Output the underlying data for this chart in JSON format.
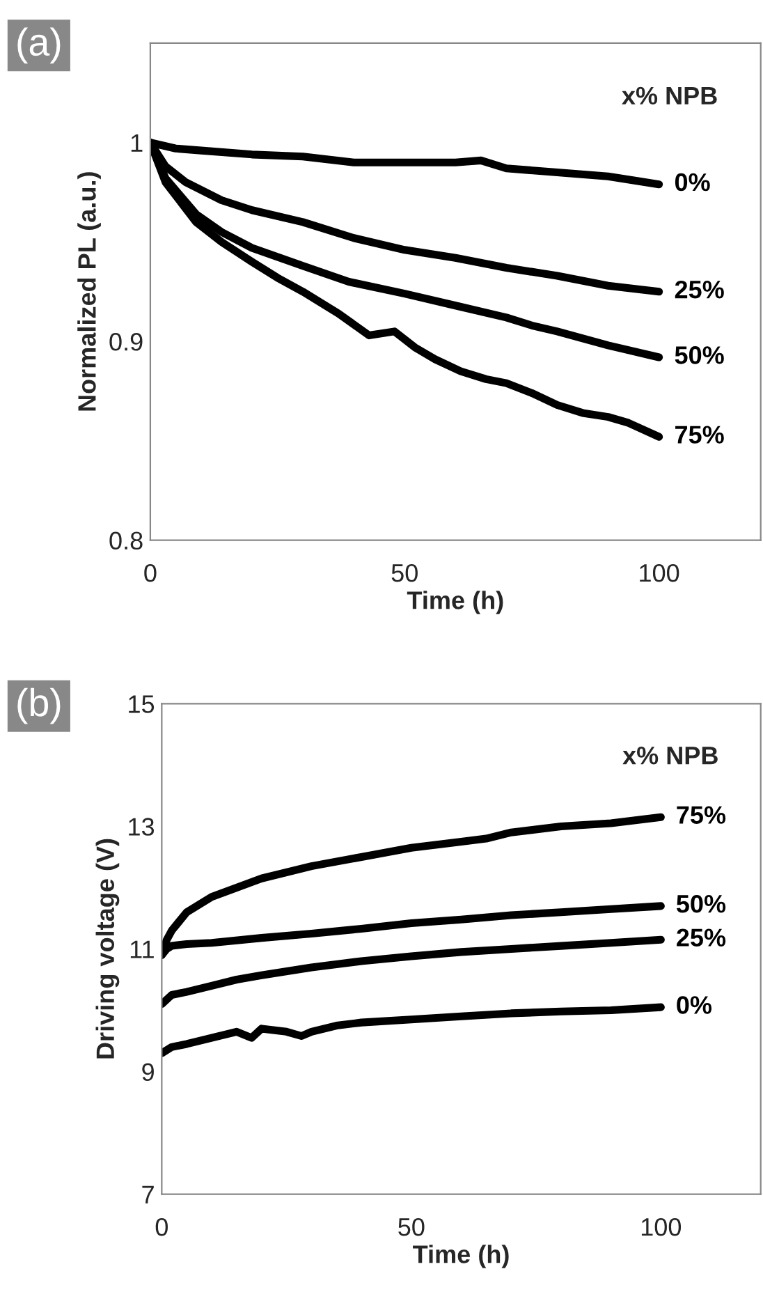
{
  "chart_data": [
    {
      "type": "line",
      "title": "(a)",
      "xlabel": "Time (h)",
      "ylabel": "Normalized PL (a.u.)",
      "legend_title": "x% NPB",
      "xlim": [
        0,
        120
      ],
      "xticks": [
        0,
        50,
        100
      ],
      "ylim": [
        0.8,
        1.05
      ],
      "yticks": [
        0.8,
        0.9,
        1
      ],
      "grid": false,
      "legend": false,
      "marker": "none",
      "line_style": "solid",
      "series": [
        {
          "name": "0%",
          "color": "#000000",
          "x": [
            0,
            5,
            10,
            20,
            30,
            40,
            50,
            60,
            65,
            70,
            80,
            90,
            100
          ],
          "values": [
            1.0,
            0.997,
            0.996,
            0.994,
            0.993,
            0.99,
            0.99,
            0.99,
            0.991,
            0.987,
            0.985,
            0.983,
            0.979
          ]
        },
        {
          "name": "25%",
          "color": "#000000",
          "x": [
            0,
            3,
            7,
            14,
            20,
            30,
            40,
            50,
            60,
            70,
            80,
            90,
            100
          ],
          "values": [
            1.0,
            0.988,
            0.98,
            0.971,
            0.966,
            0.96,
            0.952,
            0.946,
            0.942,
            0.937,
            0.933,
            0.928,
            0.925
          ]
        },
        {
          "name": "50%",
          "color": "#000000",
          "x": [
            0,
            3,
            9,
            14,
            20,
            30,
            39,
            50,
            60,
            70,
            75,
            80,
            90,
            100
          ],
          "values": [
            1.0,
            0.982,
            0.964,
            0.955,
            0.947,
            0.938,
            0.93,
            0.924,
            0.918,
            0.912,
            0.908,
            0.905,
            0.898,
            0.892
          ]
        },
        {
          "name": "75%",
          "color": "#000000",
          "x": [
            0,
            3,
            9,
            14,
            20,
            25,
            30,
            37,
            43,
            48,
            52,
            56,
            61,
            66,
            70,
            75,
            80,
            85,
            90,
            94,
            100
          ],
          "values": [
            1.0,
            0.98,
            0.96,
            0.95,
            0.94,
            0.932,
            0.925,
            0.914,
            0.903,
            0.905,
            0.897,
            0.891,
            0.885,
            0.881,
            0.879,
            0.874,
            0.868,
            0.864,
            0.862,
            0.859,
            0.852
          ]
        }
      ]
    },
    {
      "type": "line",
      "title": "(b)",
      "xlabel": "Time (h)",
      "ylabel": "Driving voltage (V)",
      "legend_title": "x% NPB",
      "xlim": [
        0,
        120
      ],
      "xticks": [
        0,
        50,
        100
      ],
      "ylim": [
        7,
        15
      ],
      "yticks": [
        7,
        9,
        11,
        13,
        15
      ],
      "grid": false,
      "legend": false,
      "marker": "none",
      "line_style": "solid",
      "series": [
        {
          "name": "75%",
          "color": "#000000",
          "x": [
            0,
            1,
            2,
            5,
            10,
            15,
            20,
            30,
            40,
            50,
            60,
            65,
            70,
            80,
            90,
            100
          ],
          "values": [
            10.9,
            11.15,
            11.3,
            11.6,
            11.85,
            12.0,
            12.15,
            12.35,
            12.5,
            12.65,
            12.75,
            12.8,
            12.9,
            13.0,
            13.05,
            13.15
          ]
        },
        {
          "name": "50%",
          "color": "#000000",
          "x": [
            0,
            1,
            2,
            5,
            10,
            20,
            30,
            40,
            50,
            60,
            70,
            80,
            90,
            100
          ],
          "values": [
            10.9,
            11.0,
            11.05,
            11.08,
            11.1,
            11.18,
            11.25,
            11.33,
            11.42,
            11.48,
            11.55,
            11.6,
            11.65,
            11.7
          ]
        },
        {
          "name": "25%",
          "color": "#000000",
          "x": [
            0,
            2,
            5,
            10,
            15,
            20,
            30,
            40,
            50,
            60,
            70,
            80,
            90,
            100
          ],
          "values": [
            10.1,
            10.25,
            10.3,
            10.4,
            10.5,
            10.57,
            10.7,
            10.8,
            10.88,
            10.95,
            11.0,
            11.05,
            11.1,
            11.15
          ]
        },
        {
          "name": "0%",
          "color": "#000000",
          "x": [
            0,
            2,
            5,
            10,
            15,
            18,
            20,
            25,
            28,
            30,
            35,
            40,
            50,
            60,
            70,
            80,
            90,
            100
          ],
          "values": [
            9.3,
            9.4,
            9.45,
            9.55,
            9.65,
            9.55,
            9.7,
            9.65,
            9.58,
            9.65,
            9.75,
            9.8,
            9.85,
            9.9,
            9.95,
            9.98,
            10.0,
            10.05
          ]
        }
      ]
    }
  ]
}
